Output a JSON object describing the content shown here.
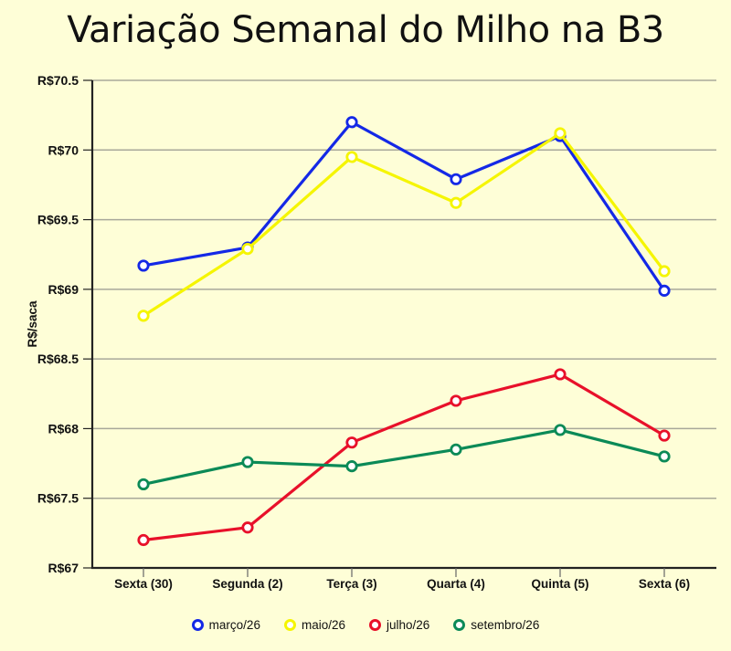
{
  "chart_data": {
    "type": "line",
    "title": "Variação Semanal do Milho na B3",
    "xlabel": "",
    "ylabel": "R$/saca",
    "ylim": [
      67,
      70.5
    ],
    "yticks": [
      67,
      67.5,
      68,
      68.5,
      69,
      69.5,
      70,
      70.5
    ],
    "ytick_labels": [
      "R$67",
      "R$67.5",
      "R$68",
      "R$68.5",
      "R$69",
      "R$69.5",
      "R$70",
      "R$70.5"
    ],
    "grid": true,
    "legend_position": "bottom",
    "categories": [
      "Sexta (30)",
      "Segunda (2)",
      "Terça (3)",
      "Quarta (4)",
      "Quinta (5)",
      "Sexta (6)"
    ],
    "series": [
      {
        "name": "março/26",
        "color": "#1428e6",
        "values": [
          69.17,
          69.3,
          70.2,
          69.79,
          70.1,
          68.99
        ]
      },
      {
        "name": "maio/26",
        "color": "#f5f500",
        "values": [
          68.81,
          69.29,
          69.95,
          69.62,
          70.12,
          69.13
        ]
      },
      {
        "name": "julho/26",
        "color": "#e8102a",
        "values": [
          67.2,
          67.29,
          67.9,
          68.2,
          68.39,
          67.95
        ]
      },
      {
        "name": "setembro/26",
        "color": "#0b8a57",
        "values": [
          67.6,
          67.76,
          67.73,
          67.85,
          67.99,
          67.8
        ]
      }
    ]
  },
  "colors": {
    "background": "#fefed7",
    "gridline": "#a8a89a",
    "axis": "#222222"
  }
}
